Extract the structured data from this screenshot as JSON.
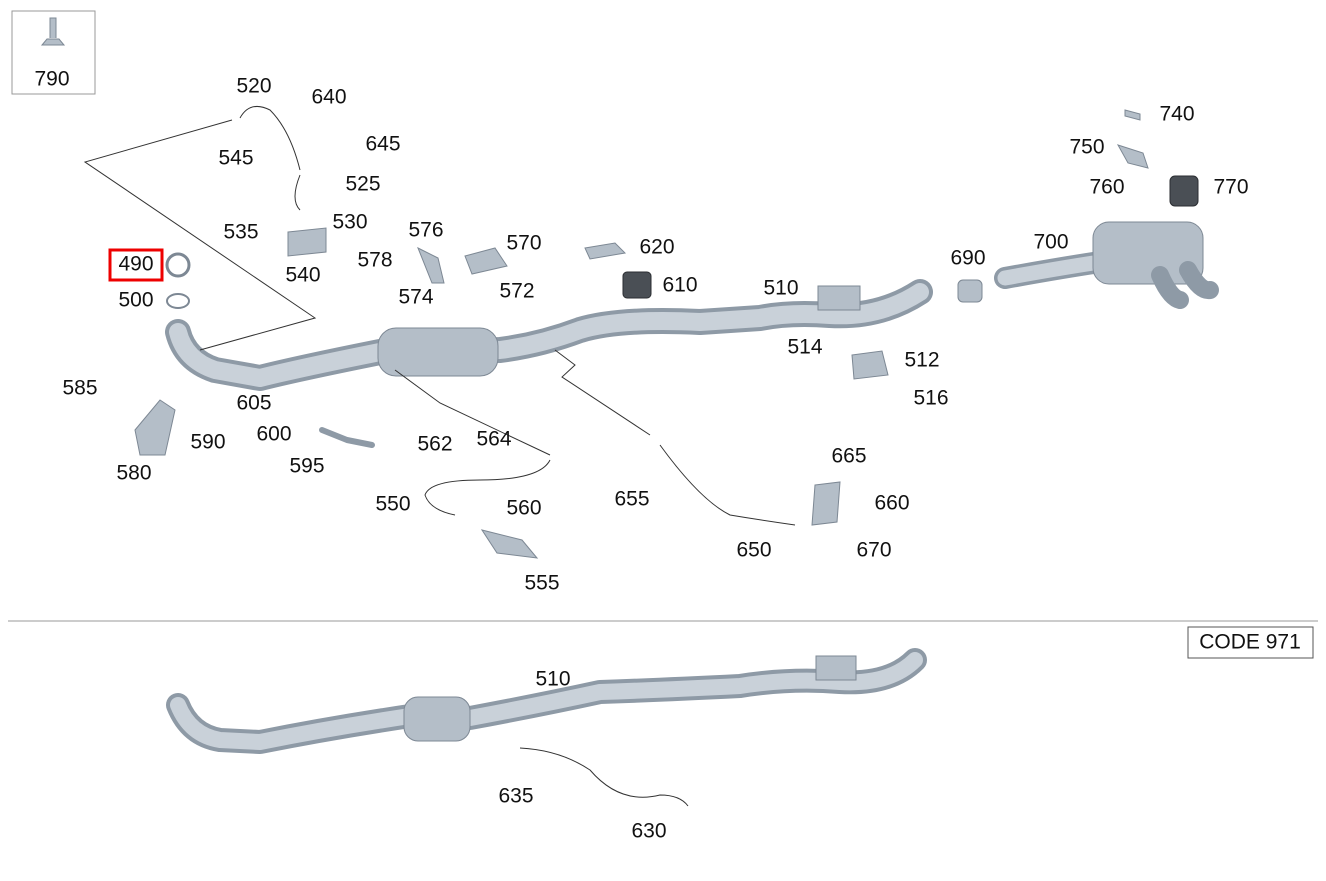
{
  "parts": [
    {
      "label": "790"
    },
    {
      "label": "520"
    },
    {
      "label": "640"
    },
    {
      "label": "545"
    },
    {
      "label": "645"
    },
    {
      "label": "525"
    },
    {
      "label": "535"
    },
    {
      "label": "530"
    },
    {
      "label": "540"
    },
    {
      "label": "576"
    },
    {
      "label": "570"
    },
    {
      "label": "578"
    },
    {
      "label": "574"
    },
    {
      "label": "572"
    },
    {
      "label": "620"
    },
    {
      "label": "610"
    },
    {
      "label": "510"
    },
    {
      "label": "690"
    },
    {
      "label": "700"
    },
    {
      "label": "740"
    },
    {
      "label": "750"
    },
    {
      "label": "760"
    },
    {
      "label": "770"
    },
    {
      "label": "490",
      "highlighted": true
    },
    {
      "label": "500"
    },
    {
      "label": "514"
    },
    {
      "label": "512"
    },
    {
      "label": "516"
    },
    {
      "label": "585"
    },
    {
      "label": "605"
    },
    {
      "label": "600"
    },
    {
      "label": "590"
    },
    {
      "label": "580"
    },
    {
      "label": "595"
    },
    {
      "label": "562"
    },
    {
      "label": "564"
    },
    {
      "label": "665"
    },
    {
      "label": "550"
    },
    {
      "label": "560"
    },
    {
      "label": "655"
    },
    {
      "label": "660"
    },
    {
      "label": "650"
    },
    {
      "label": "670"
    },
    {
      "label": "555"
    }
  ],
  "code_label": "CODE 971",
  "lower_parts": [
    {
      "label": "510"
    },
    {
      "label": "635"
    },
    {
      "label": "630"
    }
  ]
}
